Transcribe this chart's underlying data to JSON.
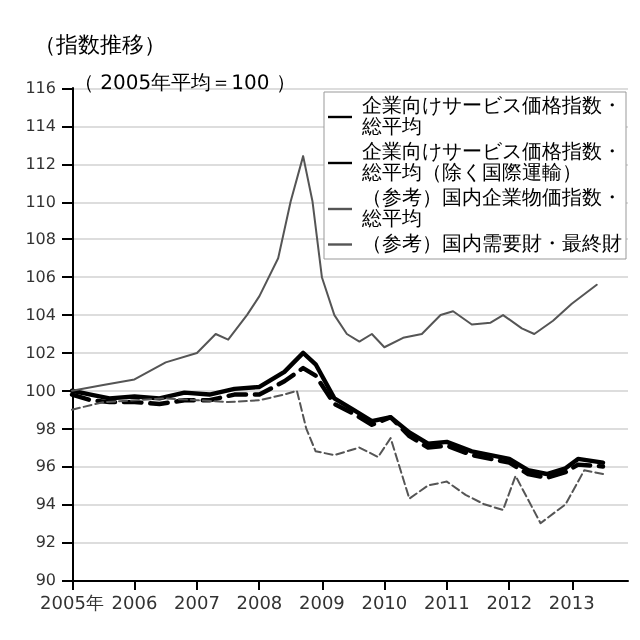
{
  "chart_data": {
    "type": "line",
    "title": "（指数推移）",
    "subtitle": "（ 2005年平均＝100 ）",
    "ylim": [
      90,
      116
    ],
    "yticks": [
      90,
      92,
      94,
      96,
      98,
      100,
      102,
      104,
      106,
      108,
      110,
      112,
      114,
      116
    ],
    "xlim": [
      2005,
      2013.9
    ],
    "xticks": [
      {
        "value": 2005,
        "label": "2005年"
      },
      {
        "value": 2006,
        "label": "2006"
      },
      {
        "value": 2007,
        "label": "2007"
      },
      {
        "value": 2008,
        "label": "2008"
      },
      {
        "value": 2009,
        "label": "2009"
      },
      {
        "value": 2010,
        "label": "2010"
      },
      {
        "value": 2011,
        "label": "2011"
      },
      {
        "value": 2012,
        "label": "2012"
      },
      {
        "value": 2013,
        "label": "2013"
      }
    ],
    "grid": "y",
    "legend": "top right",
    "marker": "none",
    "series": [
      {
        "name": "企業向けサービス価格指数・総平均",
        "color": "#000000",
        "line_style": "solid",
        "x": [
          2005,
          2005.3,
          2005.6,
          2006,
          2006.4,
          2006.8,
          2007.2,
          2007.6,
          2008,
          2008.4,
          2008.7,
          2008.9,
          2009.2,
          2009.5,
          2009.8,
          2010.1,
          2010.4,
          2010.7,
          2011,
          2011.4,
          2011.7,
          2012,
          2012.3,
          2012.6,
          2012.9,
          2013.1,
          2013.5
        ],
        "values": [
          100,
          99.8,
          99.6,
          99.7,
          99.6,
          99.9,
          99.8,
          100.1,
          100.2,
          101,
          102,
          101.4,
          99.6,
          99,
          98.4,
          98.6,
          97.8,
          97.2,
          97.3,
          96.8,
          96.6,
          96.4,
          95.8,
          95.6,
          95.9,
          96.4,
          96.2
        ]
      },
      {
        "name": "企業向けサービス価格指数・総平均（除く国際運輸）",
        "color": "#000000",
        "line_style": "dashed",
        "x": [
          2005,
          2005.3,
          2005.6,
          2006,
          2006.4,
          2006.8,
          2007.2,
          2007.6,
          2008,
          2008.4,
          2008.7,
          2008.9,
          2009.2,
          2009.5,
          2009.8,
          2010.1,
          2010.4,
          2010.7,
          2011,
          2011.4,
          2011.7,
          2012,
          2012.3,
          2012.6,
          2012.9,
          2013.1,
          2013.5
        ],
        "values": [
          99.8,
          99.5,
          99.4,
          99.4,
          99.3,
          99.5,
          99.5,
          99.8,
          99.8,
          100.5,
          101.2,
          100.8,
          99.3,
          98.8,
          98.2,
          98.6,
          97.6,
          97,
          97.1,
          96.6,
          96.4,
          96.2,
          95.6,
          95.4,
          95.7,
          96.1,
          96
        ]
      },
      {
        "name": "（参考）国内企業物価指数・総平均",
        "color": "#555555",
        "line_style": "solid",
        "x": [
          2005,
          2005.5,
          2006,
          2006.5,
          2007,
          2007.3,
          2007.5,
          2007.8,
          2008,
          2008.3,
          2008.5,
          2008.7,
          2008.85,
          2009,
          2009.2,
          2009.4,
          2009.6,
          2009.8,
          2010,
          2010.3,
          2010.6,
          2010.9,
          2011.1,
          2011.4,
          2011.7,
          2011.9,
          2012.2,
          2012.4,
          2012.7,
          2013,
          2013.4
        ],
        "values": [
          100,
          100.3,
          100.6,
          101.5,
          102,
          103,
          102.7,
          104,
          105,
          107,
          110,
          112.4,
          110,
          106,
          104,
          103,
          102.6,
          103,
          102.3,
          102.8,
          103,
          104,
          104.2,
          103.5,
          103.6,
          104,
          103.3,
          103,
          103.7,
          104.6,
          105.6
        ]
      },
      {
        "name": "（参考）国内需要財・最終財",
        "color": "#555555",
        "line_style": "dashed",
        "x": [
          2005,
          2005.5,
          2006,
          2006.5,
          2007,
          2007.5,
          2008,
          2008.4,
          2008.6,
          2008.75,
          2008.9,
          2009.2,
          2009.6,
          2009.9,
          2010.1,
          2010.4,
          2010.7,
          2011,
          2011.3,
          2011.6,
          2011.9,
          2012.1,
          2012.5,
          2012.9,
          2013.2,
          2013.5
        ],
        "values": [
          99,
          99.4,
          99.5,
          99.6,
          99.5,
          99.4,
          99.5,
          99.8,
          100,
          98,
          96.8,
          96.6,
          97,
          96.5,
          97.5,
          94.3,
          95,
          95.2,
          94.5,
          94,
          93.7,
          95.5,
          93,
          94,
          95.8,
          95.6
        ]
      }
    ]
  }
}
